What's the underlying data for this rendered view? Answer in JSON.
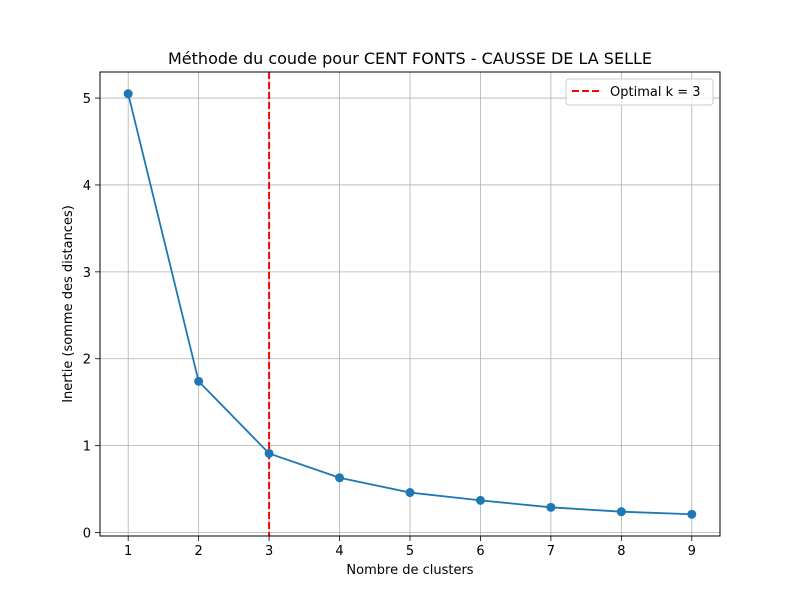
{
  "chart_data": {
    "type": "line",
    "title": "Méthode du coude pour CENT FONTS - CAUSSE DE LA SELLE",
    "xlabel": "Nombre de clusters",
    "ylabel": "Inertie (somme des distances)",
    "x": [
      1,
      2,
      3,
      4,
      5,
      6,
      7,
      8,
      9
    ],
    "series": [
      {
        "values": [
          5.05,
          1.74,
          0.91,
          0.63,
          0.46,
          0.37,
          0.29,
          0.24,
          0.21
        ],
        "color": "#1f77b4",
        "marker": "circle"
      }
    ],
    "xticks": [
      1,
      2,
      3,
      4,
      5,
      6,
      7,
      8,
      9
    ],
    "yticks": [
      0,
      1,
      2,
      3,
      4,
      5
    ],
    "xlim": [
      0.6,
      9.4
    ],
    "ylim": [
      -0.04,
      5.3
    ],
    "grid": true,
    "annotations": [
      {
        "type": "vline",
        "x": 3,
        "label": "Optimal k = 3",
        "color": "#ff0000",
        "style": "dashed"
      }
    ],
    "legend": {
      "placement": "top-right",
      "entries": [
        "Optimal k = 3"
      ]
    }
  }
}
